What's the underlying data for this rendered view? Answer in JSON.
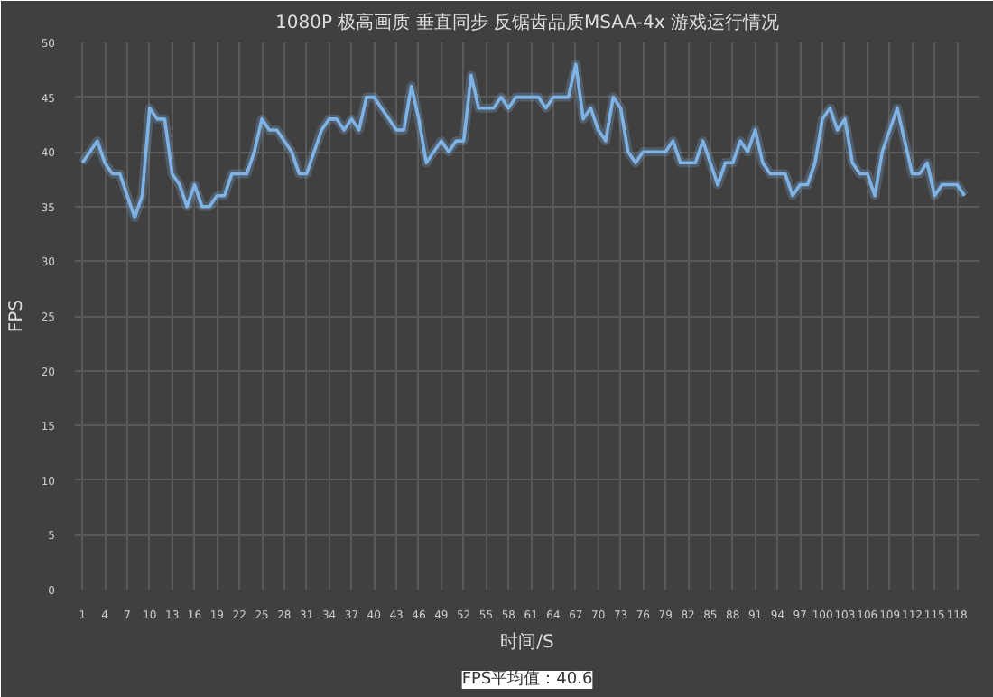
{
  "chart_data": {
    "type": "line",
    "title": "1080P 极高画质 垂直同步 反锯齿品质MSAA-4x 游戏运行情况",
    "xlabel": "时间/S",
    "ylabel": "FPS",
    "annotations": [
      "FPS平均值：40.6"
    ],
    "x": [
      1,
      2,
      3,
      4,
      5,
      6,
      7,
      8,
      9,
      10,
      11,
      12,
      13,
      14,
      15,
      16,
      17,
      18,
      19,
      20,
      21,
      22,
      23,
      24,
      25,
      26,
      27,
      28,
      29,
      30,
      31,
      32,
      33,
      34,
      35,
      36,
      37,
      38,
      39,
      40,
      41,
      42,
      43,
      44,
      45,
      46,
      47,
      48,
      49,
      50,
      51,
      52,
      53,
      54,
      55,
      56,
      57,
      58,
      59,
      60,
      61,
      62,
      63,
      64,
      65,
      66,
      67,
      68,
      69,
      70,
      71,
      72,
      73,
      74,
      75,
      76,
      77,
      78,
      79,
      80,
      81,
      82,
      83,
      84,
      85,
      86,
      87,
      88,
      89,
      90,
      91,
      92,
      93,
      94,
      95,
      96,
      97,
      98,
      99,
      100,
      101,
      102,
      103,
      104,
      105,
      106,
      107,
      108,
      109,
      110,
      111,
      112,
      113,
      114,
      115,
      116,
      117,
      118,
      119
    ],
    "series": [
      {
        "color": "#7fb2e5",
        "values": [
          39,
          40,
          41,
          39,
          38,
          38,
          36,
          34,
          36,
          44,
          43,
          43,
          38,
          37,
          35,
          37,
          35,
          35,
          36,
          36,
          38,
          38,
          38,
          40,
          43,
          42,
          42,
          41,
          40,
          38,
          38,
          40,
          42,
          43,
          43,
          42,
          43,
          42,
          45,
          45,
          44,
          43,
          42,
          42,
          46,
          43,
          39,
          40,
          41,
          40,
          41,
          41,
          47,
          44,
          44,
          44,
          45,
          44,
          45,
          45,
          45,
          45,
          44,
          45,
          45,
          45,
          48,
          43,
          44,
          42,
          41,
          45,
          44,
          40,
          39,
          40,
          40,
          40,
          40,
          41,
          39,
          39,
          39,
          41,
          39,
          37,
          39,
          39,
          41,
          40,
          42,
          39,
          38,
          38,
          38,
          36,
          37,
          37,
          39,
          43,
          44,
          42,
          43,
          39,
          38,
          38,
          36,
          40,
          42,
          44,
          41,
          38,
          38,
          39,
          36,
          37,
          37,
          37,
          36
        ]
      }
    ],
    "xlim": [
      0,
      121
    ],
    "ylim": [
      0,
      50
    ],
    "xticks": [
      1,
      4,
      7,
      10,
      13,
      16,
      19,
      22,
      25,
      28,
      31,
      34,
      37,
      40,
      43,
      46,
      49,
      52,
      55,
      58,
      61,
      64,
      67,
      70,
      73,
      76,
      79,
      82,
      85,
      88,
      91,
      94,
      97,
      100,
      103,
      106,
      109,
      112,
      115,
      118
    ],
    "yticks": [
      0,
      5,
      10,
      15,
      20,
      25,
      30,
      35,
      40,
      45,
      50
    ],
    "grid": true,
    "marker": "none",
    "line_style": "solid"
  }
}
